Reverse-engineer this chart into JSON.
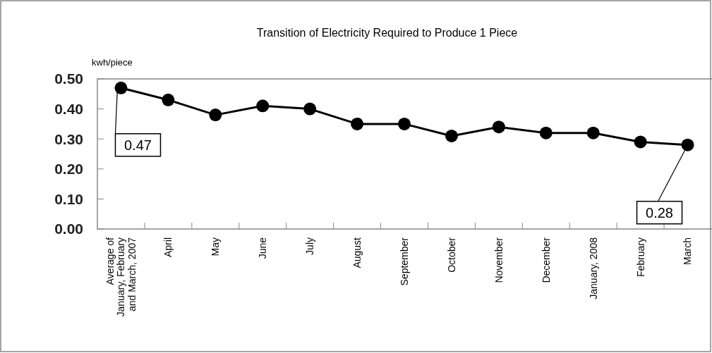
{
  "chart_data": {
    "type": "line",
    "title": "Transition of Electricity Required to Produce 1 Piece",
    "ylabel": "kwh/piece",
    "categories": [
      "Average of\nJanuary, February\nand March, 2007",
      "April",
      "May",
      "June",
      "July",
      "August",
      "September",
      "October",
      "November",
      "December",
      "January, 2008",
      "February",
      "March"
    ],
    "series": [
      {
        "color": "#000000",
        "values": [
          0.47,
          0.43,
          0.38,
          0.41,
          0.4,
          0.35,
          0.35,
          0.31,
          0.34,
          0.32,
          0.32,
          0.29,
          0.28
        ]
      }
    ],
    "ylim": [
      0,
      0.5
    ],
    "yticks": [
      {
        "value": 0,
        "label": "0.00"
      },
      {
        "value": 0.1,
        "label": "0.10"
      },
      {
        "value": 0.2,
        "label": "0.20"
      },
      {
        "value": 0.3,
        "label": "0.30"
      },
      {
        "value": 0.4,
        "label": "0.40"
      },
      {
        "value": 0.5,
        "label": "0.50"
      }
    ],
    "marker": "circle",
    "line_style": "solid",
    "grid": false,
    "annotations": [
      {
        "text": "0.47",
        "x": "Average of\nJanuary, February\nand March, 2007",
        "y": 0.47
      },
      {
        "text": "0.28",
        "x": "March",
        "y": 0.28
      }
    ]
  }
}
